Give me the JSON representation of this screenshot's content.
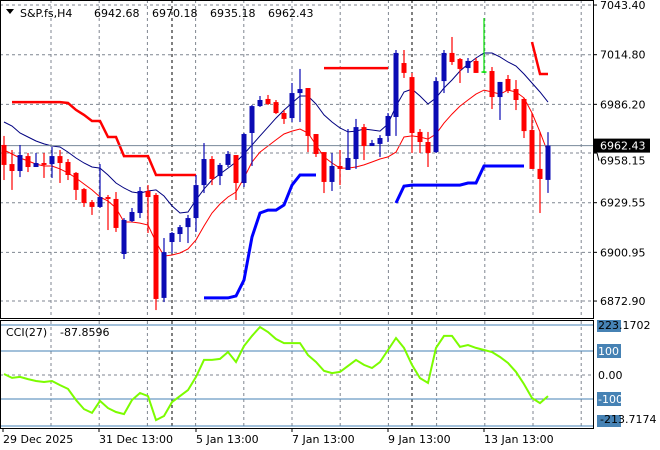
{
  "header": {
    "symbol": "S&P.fs,H4",
    "open": "6942.68",
    "high": "6970.18",
    "low": "6935.18",
    "close": "6962.43"
  },
  "colors": {
    "bull": "#0b0bb4",
    "bear": "#ff0000",
    "doji": "#00e000",
    "ma_fast": "#ff0000",
    "ma_slow": "#000080",
    "trail_upper": "#ff0000",
    "trail_lower": "#0000ff",
    "cci": "#7cfc00",
    "cci_levels": "#4682b4",
    "price_line": "#778899",
    "grid": "#7f8690"
  },
  "chart_data": [
    {
      "type": "candlestick",
      "title": "S&P.fs,H4",
      "grid": true,
      "ylim": [
        6872.9,
        7043.4
      ],
      "y_ticks": [
        "7043.40",
        "7014.80",
        "6986.20",
        "6958.15",
        "6929.55",
        "6900.95",
        "6872.90"
      ],
      "current_price": "6962.43",
      "x_tick_labels": [
        "29 Dec 2025",
        "31 Dec 13:00",
        "5 Jan 13:00",
        "7 Jan 13:00",
        "9 Jan 13:00",
        "13 Jan 13:00"
      ],
      "ohlc": [
        [
          6962.8,
          6968.0,
          6942.6,
          6951.3
        ],
        [
          6951.8,
          6959.9,
          6936.9,
          6947.8
        ],
        [
          6947.8,
          6962.8,
          6944.3,
          6957.0
        ],
        [
          6956.4,
          6958.2,
          6947.2,
          6950.1
        ],
        [
          6950.1,
          6958.2,
          6950.1,
          6952.4
        ],
        [
          6952.4,
          6958.2,
          6943.8,
          6951.3
        ],
        [
          6951.8,
          6961.6,
          6943.8,
          6956.4
        ],
        [
          6956.4,
          6959.9,
          6940.9,
          6952.4
        ],
        [
          6953.0,
          6954.7,
          6942.6,
          6945.5
        ],
        [
          6946.7,
          6947.2,
          6931.1,
          6936.9
        ],
        [
          6937.4,
          6938.0,
          6927.1,
          6929.4
        ],
        [
          6929.9,
          6931.1,
          6922.5,
          6927.1
        ],
        [
          6927.1,
          6951.8,
          6926.5,
          6932.8
        ],
        [
          6932.8,
          6934.0,
          6913.8,
          6931.7
        ],
        [
          6931.7,
          6935.7,
          6912.7,
          6915.0
        ],
        [
          6900.0,
          6920.7,
          6897.1,
          6919.6
        ],
        [
          6919.0,
          6926.5,
          6918.4,
          6924.2
        ],
        [
          6923.6,
          6938.6,
          6920.7,
          6936.3
        ],
        [
          6936.3,
          6939.7,
          6912.1,
          6932.8
        ],
        [
          6934.0,
          6935.1,
          6867.7,
          6874.1
        ],
        [
          6874.7,
          6909.2,
          6872.3,
          6901.1
        ],
        [
          6906.9,
          6912.7,
          6900.6,
          6912.1
        ],
        [
          6911.5,
          6916.7,
          6906.9,
          6915.5
        ],
        [
          6915.5,
          6922.5,
          6906.3,
          6920.7
        ],
        [
          6920.7,
          6945.5,
          6912.7,
          6939.7
        ],
        [
          6939.7,
          6963.9,
          6935.1,
          6954.7
        ],
        [
          6954.7,
          6956.4,
          6939.7,
          6943.2
        ],
        [
          6944.9,
          6952.4,
          6939.7,
          6951.3
        ],
        [
          6951.3,
          6959.3,
          6950.1,
          6957.6
        ],
        [
          6957.0,
          6957.0,
          6931.1,
          6940.9
        ],
        [
          6940.9,
          6969.7,
          6938.6,
          6969.1
        ],
        [
          6969.7,
          6985.8,
          6950.7,
          6985.2
        ],
        [
          6985.2,
          6991.0,
          6984.7,
          6988.7
        ],
        [
          6989.3,
          6991.6,
          6985.8,
          6986.4
        ],
        [
          6987.5,
          6988.7,
          6980.6,
          6981.2
        ],
        [
          6981.2,
          6982.9,
          6974.9,
          6977.8
        ],
        [
          6978.3,
          6998.5,
          6976.0,
          6992.7
        ],
        [
          6992.7,
          7006.6,
          6976.0,
          6995.0
        ],
        [
          6995.6,
          6995.6,
          6958.7,
          6968.0
        ],
        [
          6969.1,
          6969.1,
          6955.9,
          6957.6
        ],
        [
          6958.7,
          6958.7,
          6935.1,
          6941.5
        ],
        [
          6941.5,
          6958.2,
          6936.3,
          6950.7
        ],
        [
          6950.7,
          6959.9,
          6939.7,
          6949.0
        ],
        [
          6948.4,
          6972.0,
          6948.4,
          6955.3
        ],
        [
          6954.7,
          6977.8,
          6949.0,
          6973.1
        ],
        [
          6973.1,
          6974.9,
          6954.1,
          6962.2
        ],
        [
          6962.2,
          6965.7,
          6962.2,
          6963.9
        ],
        [
          6963.4,
          6968.5,
          6955.9,
          6966.8
        ],
        [
          6968.0,
          6981.2,
          6964.5,
          6979.5
        ],
        [
          6978.9,
          7017.5,
          6968.0,
          7015.8
        ],
        [
          7010.0,
          7017.5,
          7001.4,
          7004.3
        ],
        [
          7001.9,
          7004.3,
          6958.2,
          6969.7
        ],
        [
          6970.3,
          6972.0,
          6958.2,
          6964.5
        ],
        [
          6964.5,
          6970.3,
          6950.1,
          6958.2
        ],
        [
          6958.7,
          7001.9,
          6958.2,
          6999.6
        ],
        [
          6999.6,
          7017.5,
          6992.7,
          7015.8
        ],
        [
          7015.8,
          7025.0,
          7008.9,
          7010.6
        ],
        [
          7012.3,
          7012.9,
          6998.5,
          7006.6
        ],
        [
          7007.1,
          7012.9,
          7004.3,
          7011.2
        ],
        [
          7011.2,
          7012.9,
          7004.3,
          7004.3
        ],
        [
          7004.8,
          7035.9,
          7004.3,
          7004.8
        ],
        [
          7005.4,
          7007.7,
          6983.5,
          6990.4
        ],
        [
          6990.4,
          6999.1,
          6977.2,
          6999.1
        ],
        [
          7000.8,
          7003.1,
          6992.7,
          6993.9
        ],
        [
          6995.0,
          7000.2,
          6982.9,
          6988.7
        ],
        [
          6989.3,
          6989.9,
          6966.8,
          6970.8
        ],
        [
          6971.4,
          6981.2,
          6949.0,
          6949.0
        ],
        [
          6949.0,
          6970.3,
          6923.6,
          6943.2
        ],
        [
          6942.68,
          6970.18,
          6935.18,
          6962.43
        ]
      ],
      "ma_slow": [
        6976.0,
        6973.7,
        6969.7,
        6967.4,
        6965.1,
        6963.4,
        6962.2,
        6961.6,
        6958.7,
        6955.3,
        6952.4,
        6950.1,
        6949.5,
        6945.5,
        6940.9,
        6938.0,
        6935.7,
        6935.1,
        6936.3,
        6936.9,
        6933.4,
        6927.7,
        6923.6,
        6924.2,
        6931.1,
        6937.4,
        6942.6,
        6946.1,
        6949.5,
        6953.0,
        6957.6,
        6962.8,
        6968.0,
        6973.1,
        6978.3,
        6982.9,
        6987.0,
        6991.0,
        6991.0,
        6986.4,
        6980.1,
        6976.0,
        6972.6,
        6970.3,
        6970.8,
        6972.0,
        6971.4,
        6970.8,
        6974.9,
        6985.2,
        6993.3,
        6995.0,
        6991.0,
        6986.4,
        6989.9,
        6995.6,
        7000.2,
        7005.4,
        7009.4,
        7012.9,
        7015.8,
        7015.8,
        7013.5,
        7010.6,
        7008.3,
        7003.7,
        6998.5,
        6993.3,
        6987.5
      ],
      "ma_fast": [
        6959.9,
        6957.6,
        6955.3,
        6953.6,
        6951.8,
        6950.7,
        6950.7,
        6949.0,
        6946.7,
        6943.8,
        6940.3,
        6936.9,
        6932.8,
        6930.5,
        6926.5,
        6918.4,
        6918.4,
        6917.8,
        6916.7,
        6906.9,
        6898.8,
        6899.4,
        6900.6,
        6902.9,
        6908.1,
        6916.1,
        6923.6,
        6928.8,
        6932.8,
        6935.7,
        6943.8,
        6953.0,
        6958.7,
        6962.2,
        6965.7,
        6969.1,
        6970.8,
        6972.0,
        6969.7,
        6962.8,
        6955.9,
        6952.4,
        6949.5,
        6949.5,
        6950.1,
        6951.3,
        6953.0,
        6954.7,
        6955.9,
        6958.7,
        6967.4,
        6968.0,
        6967.4,
        6966.2,
        6969.1,
        6975.4,
        6980.6,
        6985.2,
        6988.7,
        6992.1,
        6994.4,
        6993.3,
        6992.1,
        6994.4,
        6993.3,
        6989.9,
        6981.2,
        6970.3,
        6958.2
      ],
      "trail_upper": [
        null,
        6987.5,
        6987.5,
        6987.5,
        6987.5,
        6987.5,
        6987.5,
        6987.5,
        6987.0,
        6983.0,
        6980.1,
        6976.6,
        6976.6,
        6967.4,
        6967.4,
        6956.4,
        6956.4,
        6956.4,
        6956.4,
        6945.5,
        6945.5,
        6945.5,
        6945.5,
        6945.5,
        6945.5,
        null,
        null,
        null,
        null,
        null,
        null,
        null,
        null,
        null,
        null,
        null,
        null,
        null,
        null,
        null,
        7007.1,
        7007.1,
        7007.1,
        7007.1,
        7007.1,
        7007.1,
        7007.1,
        7007.1,
        7007.1,
        null,
        null,
        null,
        null,
        null,
        null,
        null,
        null,
        null,
        null,
        null,
        null,
        null,
        null,
        null,
        null,
        null,
        7022.1,
        7003.7,
        7003.7
      ],
      "trail_lower": [
        null,
        null,
        null,
        null,
        null,
        null,
        null,
        null,
        null,
        null,
        null,
        null,
        null,
        null,
        null,
        null,
        null,
        null,
        null,
        null,
        null,
        null,
        null,
        null,
        null,
        6874.7,
        6874.7,
        6874.7,
        6874.7,
        6875.8,
        6885.0,
        6909.8,
        6923.6,
        6925.3,
        6925.3,
        6928.2,
        6939.7,
        6945.5,
        6945.5,
        6945.5,
        null,
        null,
        null,
        null,
        null,
        null,
        null,
        null,
        null,
        6929.4,
        6939.1,
        6939.7,
        6939.7,
        6939.7,
        6939.7,
        6939.7,
        6939.7,
        6939.7,
        6940.9,
        6940.9,
        6950.7,
        6950.7,
        6950.7,
        6950.7,
        6950.7,
        6950.7,
        null,
        null,
        null
      ]
    },
    {
      "type": "line",
      "title": "CCI(27)",
      "value_label": "-87.8596",
      "ylim": [
        -213.7174,
        223.1702
      ],
      "y_ticks": [
        "223.1702",
        "100",
        "0.00",
        "-100",
        "-213.7174"
      ],
      "levels": [
        100,
        0,
        -100
      ],
      "values": [
        4,
        -12,
        -8,
        -17,
        -25,
        -29,
        -25,
        -42,
        -58,
        -104,
        -142,
        -158,
        -108,
        -138,
        -154,
        -163,
        -104,
        -75,
        -88,
        -188,
        -171,
        -113,
        -88,
        -63,
        -8,
        63,
        63,
        67,
        96,
        54,
        121,
        163,
        200,
        179,
        150,
        133,
        133,
        133,
        83,
        54,
        17,
        8,
        13,
        38,
        63,
        42,
        29,
        54,
        104,
        154,
        113,
        42,
        -13,
        -33,
        113,
        163,
        163,
        117,
        125,
        113,
        104,
        96,
        75,
        50,
        13,
        -38,
        -96,
        -117,
        -87.8596
      ]
    }
  ]
}
